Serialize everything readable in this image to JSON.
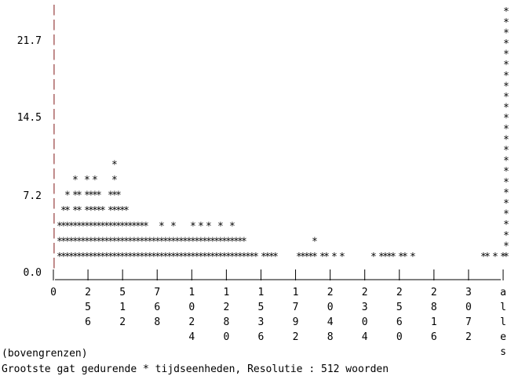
{
  "chart_data": {
    "type": "bar",
    "style": "ascii-histogram",
    "mark_char": "*",
    "y_ticks": [
      "21.7",
      "14.5",
      "7.2",
      "0.0"
    ],
    "ylim": [
      0,
      24
    ],
    "x_ticks": [
      "0",
      "256",
      "512",
      "768",
      "1024",
      "1280",
      "1536",
      "1792",
      "2048",
      "2304",
      "2560",
      "2816",
      "3072",
      "alles"
    ],
    "bucket_width": 64,
    "values": [
      3,
      4,
      5,
      3,
      6,
      5,
      3,
      6,
      5,
      6,
      5,
      4,
      3,
      5,
      7,
      5,
      4,
      4,
      3,
      3,
      3,
      3,
      3,
      2,
      2,
      2,
      3,
      2,
      2,
      3,
      2,
      2,
      2,
      2,
      3,
      2,
      3,
      2,
      3,
      2,
      2,
      3,
      2,
      2,
      3,
      2,
      2,
      2,
      1,
      1,
      1,
      0,
      1,
      1,
      1,
      1,
      0,
      0,
      0,
      0,
      0,
      1,
      1,
      1,
      1,
      2,
      0,
      1,
      1,
      0,
      1,
      0,
      1,
      0,
      0,
      0,
      0,
      0,
      0,
      0,
      1,
      0,
      1,
      1,
      1,
      1,
      0,
      1,
      1,
      0,
      1,
      0,
      0,
      0,
      0,
      0,
      0,
      0,
      0,
      0,
      0,
      0,
      0,
      0,
      0,
      0,
      0,
      0,
      1,
      1,
      0,
      1,
      0,
      1
    ],
    "overflow_value": 24,
    "caption_left": "(bovengrenzen)",
    "footer": "Grootste gat gedurende * tijdseenheden, Resolutie : 512 woorden"
  }
}
